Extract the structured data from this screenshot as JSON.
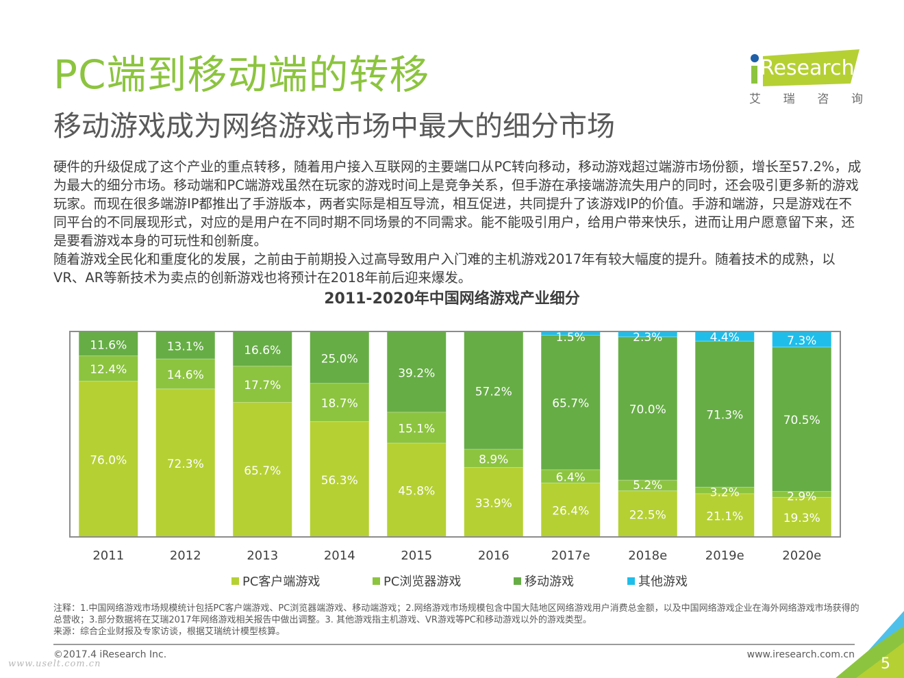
{
  "header": {
    "title": "PC端到移动端的转移",
    "subtitle": "移动游戏成为网络游戏市场中最大的细分市场"
  },
  "logo": {
    "brand": "iResearch",
    "brand_rest": "Research",
    "cn_chars": [
      "艾",
      "瑞",
      "咨",
      "询"
    ],
    "colors": {
      "slab": "#b5d033",
      "dot": "#1e5fa8"
    }
  },
  "body": {
    "paragraphs": [
      "硬件的升级促成了这个产业的重点转移，随着用户接入互联网的主要端口从PC转向移动，移动游戏超过端游市场份额，增长至57.2%，成为最大的细分市场。移动端和PC端游戏虽然在玩家的游戏时间上是竞争关系，但手游在承接端游流失用户的同时，还会吸引更多新的游戏玩家。而现在很多端游IP都推出了手游版本，两者实际是相互导流，相互促进，共同提升了该游戏IP的价值。手游和端游，只是游戏在不同平台的不同展现形式，对应的是用户在不同时期不同场景的不同需求。能不能吸引用户，给用户带来快乐，进而让用户愿意留下来，还是要看游戏本身的可玩性和创新度。",
      "随着游戏全民化和重度化的发展，之前由于前期投入过高导致用户入门难的主机游戏2017年有较大幅度的提升。随着技术的成熟，以VR、AR等新技术为卖点的创新游戏也将预计在2018年前后迎来爆发。"
    ]
  },
  "chart_data": {
    "type": "bar",
    "stacked": true,
    "title": "2011-2020年中国网络游戏产业细分",
    "xlabel": "",
    "ylabel": "",
    "ylim": [
      0,
      100
    ],
    "grid": false,
    "legend_position": "bottom",
    "value_suffix": "%",
    "categories": [
      "2011",
      "2012",
      "2013",
      "2014",
      "2015",
      "2016",
      "2017e",
      "2018e",
      "2019e",
      "2020e"
    ],
    "series": [
      {
        "name": "PC客户端游戏",
        "color": "#b5d033",
        "values": [
          76.0,
          72.3,
          65.7,
          56.3,
          45.8,
          33.9,
          26.4,
          22.5,
          21.1,
          19.3
        ]
      },
      {
        "name": "PC浏览器游戏",
        "color": "#8cc43f",
        "values": [
          12.4,
          14.6,
          17.7,
          18.7,
          15.1,
          8.9,
          6.4,
          5.2,
          3.2,
          2.9
        ]
      },
      {
        "name": "移动游戏",
        "color": "#66ad45",
        "values": [
          11.6,
          13.1,
          16.6,
          25.0,
          39.2,
          57.2,
          65.7,
          70.0,
          71.3,
          70.5
        ]
      },
      {
        "name": "其他游戏",
        "color": "#1fbeea",
        "values": [
          null,
          null,
          null,
          null,
          null,
          null,
          1.5,
          2.3,
          4.4,
          7.3
        ]
      }
    ]
  },
  "notes": {
    "note": "注释：1.中国网络游戏市场规模统计包括PC客户端游戏、PC浏览器端游戏、移动端游戏；2.网络游戏市场规模包含中国大陆地区网络游戏用户消费总金额，以及中国网络游戏企业在海外网络游戏市场获得的总营收；3.部分数据将在艾瑞2017年网络游戏相关报告中做出调整。3. 其他游戏指主机游戏、VR游戏等PC和移动游戏以外的游戏类型。",
    "source": "来源：综合企业财报及专家访谈，根据艾瑞统计模型核算。"
  },
  "footer": {
    "copyright": "©2017.4 iResearch Inc.",
    "website": "www.iresearch.com.cn",
    "page_number": "5",
    "watermark": "www.uselt.com.cn"
  }
}
